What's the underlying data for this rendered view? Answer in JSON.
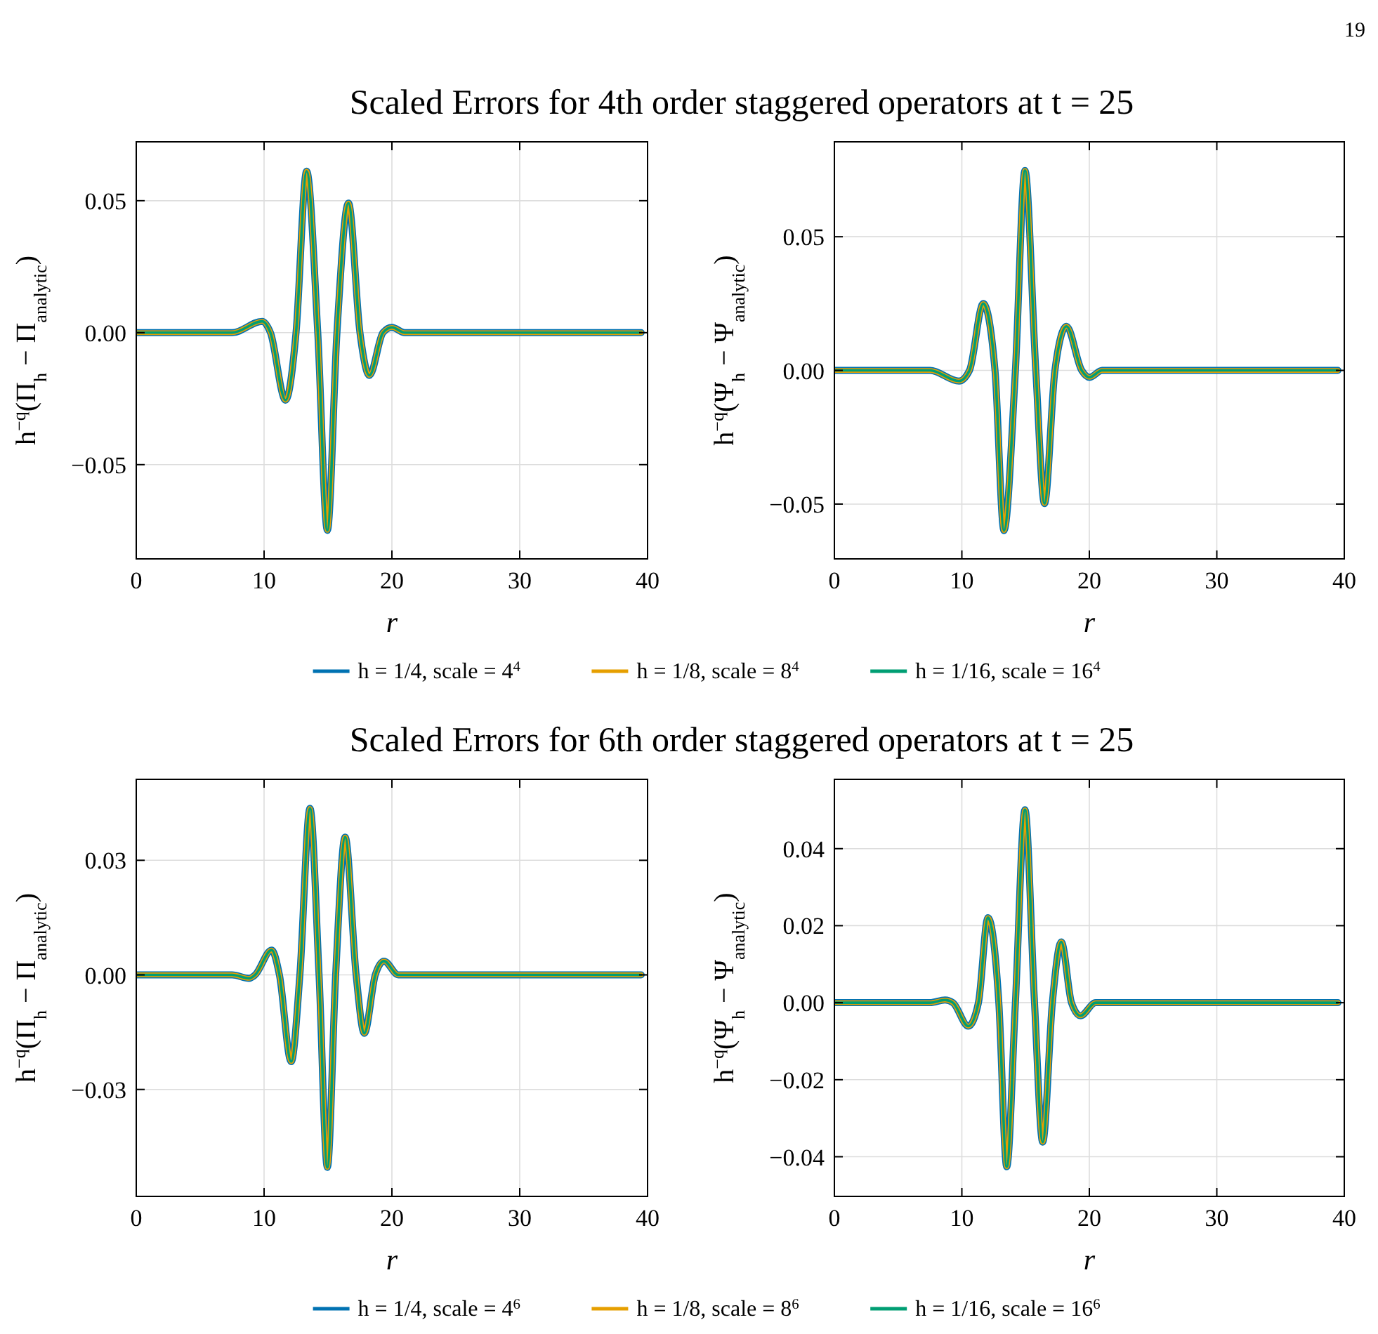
{
  "chart_data": [
    {
      "type": "line",
      "title": "Scaled Errors for 4th order staggered operators at t = 25",
      "xlabel": "r",
      "ylabel": "h$^{−q}$(Π$_{h}$ − Π$_{analytic}$)",
      "annotations": [
        "19"
      ],
      "legend": "bottom",
      "grid": true,
      "x": [
        0,
        7.5,
        9.85,
        10.5,
        11.68,
        12.5,
        13.33,
        14.2,
        14.95,
        15.7,
        16.6,
        17.5,
        18.24,
        19.3,
        20.0,
        21,
        39.5
      ],
      "xlim": [
        0,
        40
      ],
      "xticks": [
        0,
        10,
        20,
        30,
        40
      ],
      "ylim": [
        -0.0857,
        0.0723
      ],
      "yticks": [
        {
          "value": -0.05,
          "label": "−0.05"
        },
        {
          "value": 0,
          "label": "0.00"
        },
        {
          "value": 0.05,
          "label": "0.05"
        }
      ],
      "series": [
        {
          "name": "h = 1/4, scale = 4$^{4}$",
          "color": "#0072b2",
          "values": [
            0,
            0,
            0.0043,
            0,
            -0.0256,
            0,
            0.0612,
            0,
            -0.0749,
            0,
            0.0491,
            0,
            -0.0162,
            0,
            0.002,
            0,
            0
          ]
        },
        {
          "name": "h = 1/8, scale = 8$^{4}$",
          "color": "#e69f00",
          "values": [
            0,
            0,
            0.0043,
            0,
            -0.0256,
            0,
            0.0612,
            0,
            -0.0749,
            0,
            0.0491,
            0,
            -0.0162,
            0,
            0.002,
            0,
            0
          ]
        },
        {
          "name": "h = 1/16, scale = 16$^{4}$",
          "color": "#009e73",
          "values": [
            0,
            0,
            0.0043,
            0,
            -0.0256,
            0,
            0.0612,
            0,
            -0.0749,
            0,
            0.0491,
            0,
            -0.0162,
            0,
            0.002,
            0,
            0
          ]
        }
      ]
    },
    {
      "type": "line",
      "xlabel": "r",
      "ylabel": "h$^{−q}$(Ψ$_{h}$ − Ψ$_{analytic}$)",
      "grid": true,
      "x": [
        0,
        7.5,
        9.78,
        10.6,
        11.68,
        12.6,
        13.3,
        14.2,
        14.95,
        15.8,
        16.48,
        17.3,
        18.2,
        19.4,
        20.0,
        21,
        39.5
      ],
      "xlim": [
        0,
        40
      ],
      "xticks": [
        0,
        10,
        20,
        30,
        40
      ],
      "ylim": [
        -0.0705,
        0.0855
      ],
      "yticks": [
        {
          "value": -0.05,
          "label": "−0.05"
        },
        {
          "value": 0,
          "label": "0.00"
        },
        {
          "value": 0.05,
          "label": "0.05"
        }
      ],
      "series": [
        {
          "color": "#0072b2",
          "values": [
            0,
            0,
            -0.004,
            0,
            0.025,
            0,
            -0.0599,
            0,
            0.0748,
            0,
            -0.0498,
            0,
            0.0165,
            0,
            -0.0026,
            0,
            0
          ]
        },
        {
          "color": "#e69f00",
          "values": [
            0,
            0,
            -0.004,
            0,
            0.025,
            0,
            -0.0599,
            0,
            0.0748,
            0,
            -0.0498,
            0,
            0.0165,
            0,
            -0.0026,
            0,
            0
          ]
        },
        {
          "color": "#009e73",
          "values": [
            0,
            0,
            -0.004,
            0,
            0.025,
            0,
            -0.0599,
            0,
            0.0748,
            0,
            -0.0498,
            0,
            0.0165,
            0,
            -0.0026,
            0,
            0
          ]
        }
      ]
    },
    {
      "type": "line",
      "title": "Scaled Errors for 6th order staggered operators at t = 25",
      "xlabel": "r",
      "ylabel": "h$^{−q}$(Π$_{h}$ − Π$_{analytic}$)",
      "legend": "bottom",
      "grid": true,
      "x": [
        0,
        7.5,
        8.83,
        9.3,
        10.59,
        11.2,
        12.12,
        12.8,
        13.59,
        14.3,
        14.95,
        15.6,
        16.34,
        17.2,
        17.84,
        18.7,
        19.38,
        20.5,
        39.5
      ],
      "xlim": [
        0,
        40
      ],
      "xticks": [
        0,
        10,
        20,
        30,
        40
      ],
      "ylim": [
        -0.058,
        0.0512
      ],
      "yticks": [
        {
          "value": -0.03,
          "label": "−0.03"
        },
        {
          "value": 0,
          "label": "0.00"
        },
        {
          "value": 0.03,
          "label": "0.03"
        }
      ],
      "series": [
        {
          "name": "h = 1/4, scale = 4$^{6}$",
          "color": "#0072b2",
          "values": [
            0,
            0,
            -0.0009,
            0,
            0.0065,
            0,
            -0.0227,
            0,
            0.0436,
            0,
            -0.0504,
            0,
            0.0361,
            0,
            -0.0153,
            0,
            0.0036,
            0,
            0
          ]
        },
        {
          "name": "h = 1/8, scale = 8$^{6}$",
          "color": "#e69f00",
          "values": [
            0,
            0,
            -0.0009,
            0,
            0.0065,
            0,
            -0.0227,
            0,
            0.0436,
            0,
            -0.0504,
            0,
            0.0361,
            0,
            -0.0153,
            0,
            0.0036,
            0,
            0
          ]
        },
        {
          "name": "h = 1/16, scale = 16$^{6}$",
          "color": "#009e73",
          "values": [
            0,
            0,
            -0.0009,
            0,
            0.0065,
            0,
            -0.0227,
            0,
            0.0436,
            0,
            -0.0504,
            0,
            0.0361,
            0,
            -0.0153,
            0,
            0.0036,
            0,
            0
          ]
        }
      ]
    },
    {
      "type": "line",
      "xlabel": "r",
      "ylabel": "h$^{−q}$(Ψ$_{h}$ − Ψ$_{analytic}$)",
      "grid": true,
      "x": [
        0,
        7.5,
        8.68,
        9.3,
        10.51,
        11.3,
        12.05,
        12.9,
        13.52,
        14.2,
        14.95,
        15.7,
        16.34,
        17.1,
        17.8,
        18.6,
        19.3,
        20.5,
        39.5
      ],
      "xlim": [
        0,
        40
      ],
      "xticks": [
        0,
        10,
        20,
        30,
        40
      ],
      "ylim": [
        -0.0503,
        0.058
      ],
      "yticks": [
        {
          "value": -0.04,
          "label": "−0.04"
        },
        {
          "value": -0.02,
          "label": "−0.02"
        },
        {
          "value": 0,
          "label": "0.00"
        },
        {
          "value": 0.02,
          "label": "0.02"
        },
        {
          "value": 0.04,
          "label": "0.04"
        }
      ],
      "series": [
        {
          "color": "#0072b2",
          "values": [
            0,
            0,
            0.0007,
            0,
            -0.0061,
            0,
            0.0221,
            0,
            -0.0426,
            0,
            0.0501,
            0,
            -0.0362,
            0,
            0.0158,
            0,
            -0.0034,
            0,
            0
          ]
        },
        {
          "color": "#e69f00",
          "values": [
            0,
            0,
            0.0007,
            0,
            -0.0061,
            0,
            0.0221,
            0,
            -0.0426,
            0,
            0.0501,
            0,
            -0.0362,
            0,
            0.0158,
            0,
            -0.0034,
            0,
            0
          ]
        },
        {
          "color": "#009e73",
          "values": [
            0,
            0,
            0.0007,
            0,
            -0.0061,
            0,
            0.0221,
            0,
            -0.0426,
            0,
            0.0501,
            0,
            -0.0362,
            0,
            0.0158,
            0,
            -0.0034,
            0,
            0
          ]
        }
      ]
    }
  ]
}
